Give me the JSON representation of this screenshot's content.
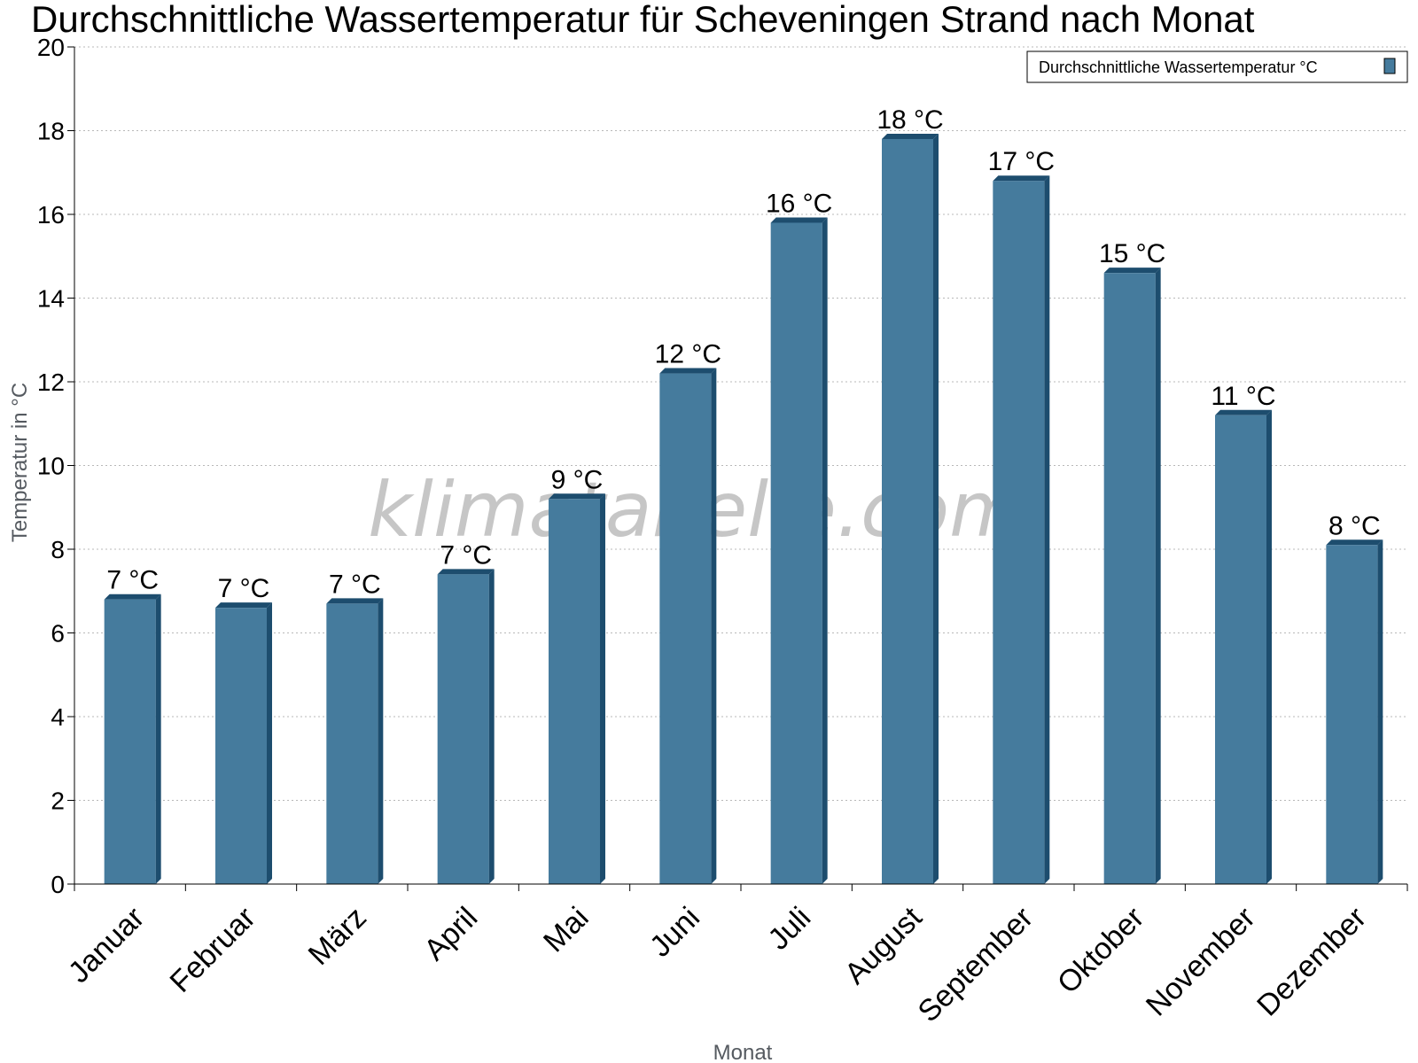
{
  "chart_data": {
    "type": "bar",
    "title": "Durchschnittliche Wassertemperatur für Scheveningen Strand nach Monat",
    "xlabel": "Monat",
    "ylabel": "Temperatur in °C",
    "ylim": [
      0,
      20
    ],
    "yticks": [
      0,
      2,
      4,
      6,
      8,
      10,
      12,
      14,
      16,
      18,
      20
    ],
    "grid": true,
    "legend_position": "top-right",
    "categories": [
      "Januar",
      "Februar",
      "März",
      "April",
      "Mai",
      "Juni",
      "Juli",
      "August",
      "September",
      "Oktober",
      "November",
      "Dezember"
    ],
    "series": [
      {
        "name": "Durchschnittliche Wassertemperatur °C",
        "values": [
          6.8,
          6.6,
          6.7,
          7.4,
          9.2,
          12.2,
          15.8,
          17.8,
          16.8,
          14.6,
          11.2,
          8.1
        ],
        "labels": [
          "7 °C",
          "7 °C",
          "7 °C",
          "7 °C",
          "9 °C",
          "12 °C",
          "16 °C",
          "18 °C",
          "17 °C",
          "15 °C",
          "11 °C",
          "8 °C"
        ],
        "color": "#457b9d",
        "shade_color": "#1d4d6e"
      }
    ]
  },
  "watermark": "klimatabelle.com"
}
